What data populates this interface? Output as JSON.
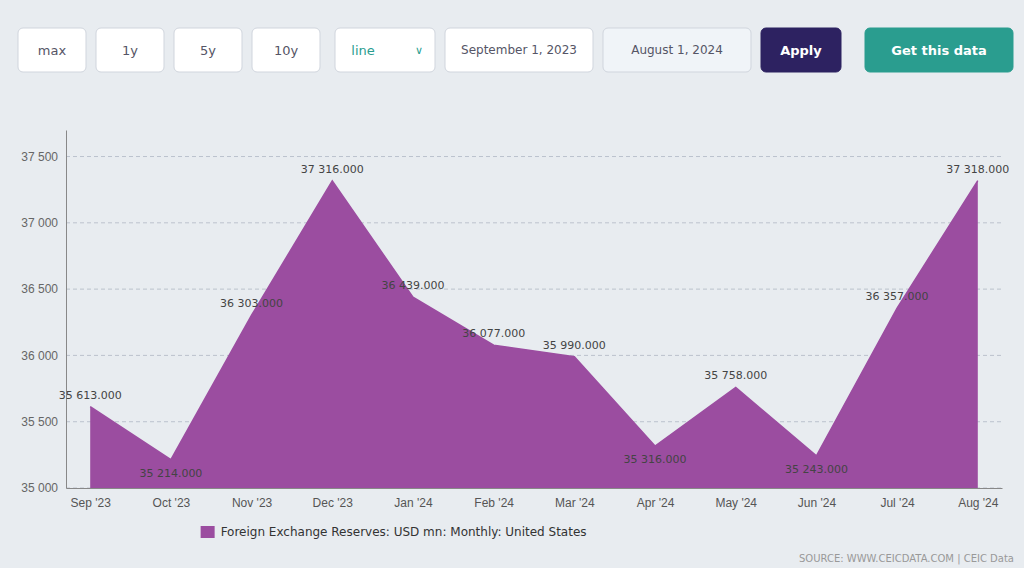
{
  "chart_data": {
    "type": "area",
    "categories": [
      "Sep '23",
      "Oct '23",
      "Nov '23",
      "Dec '23",
      "Jan '24",
      "Feb '24",
      "Mar '24",
      "Apr '24",
      "May '24",
      "Jun '24",
      "Jul '24",
      "Aug '24"
    ],
    "series": [
      {
        "name": "Foreign Exchange Reserves: USD mn: Monthly: United States",
        "color": "#9B4DA0",
        "values": [
          35613.0,
          35214.0,
          36303.0,
          37316.0,
          36439.0,
          36077.0,
          35990.0,
          35316.0,
          35758.0,
          35243.0,
          36357.0,
          37318.0
        ],
        "value_labels": [
          "35 613.000",
          "35 214.000",
          "36 303.000",
          "37 316.000",
          "36 439.000",
          "36 077.000",
          "35 990.000",
          "35 316.000",
          "35 758.000",
          "35 243.000",
          "36 357.000",
          "37 318.000"
        ]
      }
    ],
    "ylim": [
      35000,
      37700
    ],
    "yticks": [
      {
        "value": 35000,
        "label": "35 000"
      },
      {
        "value": 35500,
        "label": "35 500"
      },
      {
        "value": 36000,
        "label": "36 000"
      },
      {
        "value": 36500,
        "label": "36 500"
      },
      {
        "value": 37000,
        "label": "37 000"
      },
      {
        "value": 37500,
        "label": "37 500"
      }
    ],
    "grid": true,
    "legend": "bottom",
    "data_labels": true,
    "source": "SOURCE: WWW.CEICDATA.COM | CEIC Data"
  },
  "page": {
    "nav_buttons": [
      "max",
      "1y",
      "5y",
      "10y"
    ],
    "line_label": "line",
    "chevron": "∨",
    "date1": "September 1, 2023",
    "date2": "August 1, 2024",
    "apply_label": "Apply",
    "getdata_label": "Get this data"
  }
}
